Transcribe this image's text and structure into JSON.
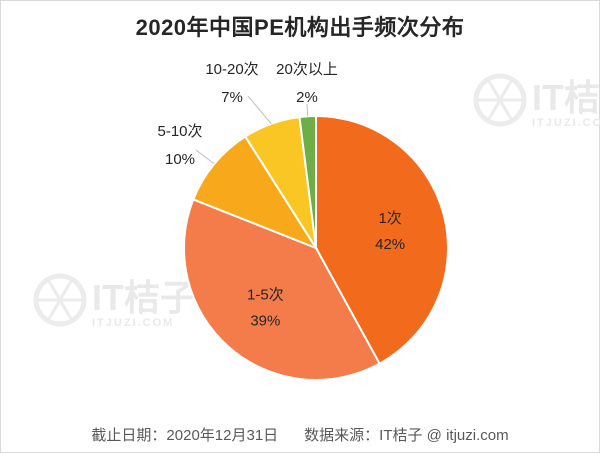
{
  "title": "2020年中国PE机构出手频次分布",
  "footer": {
    "cutoff": "截止日期：2020年12月31日",
    "source": "数据来源：IT桔子 @ itjuzi.com"
  },
  "watermark": {
    "brand": "IT桔子",
    "site": "ITJUZI.COM"
  },
  "chart_data": {
    "type": "pie",
    "title": "2020年中国PE机构出手频次分布",
    "categories": [
      "1次",
      "1-5次",
      "5-10次",
      "10-20次",
      "20次以上"
    ],
    "values": [
      42,
      39,
      10,
      7,
      2
    ],
    "value_labels": [
      "42%",
      "39%",
      "10%",
      "7%",
      "2%"
    ],
    "colors": [
      "#f26b1d",
      "#f47b4a",
      "#f7a81b",
      "#f9c623",
      "#6fad47"
    ],
    "start_angle_deg": 0,
    "direction": "clockwise",
    "legend": "none"
  }
}
